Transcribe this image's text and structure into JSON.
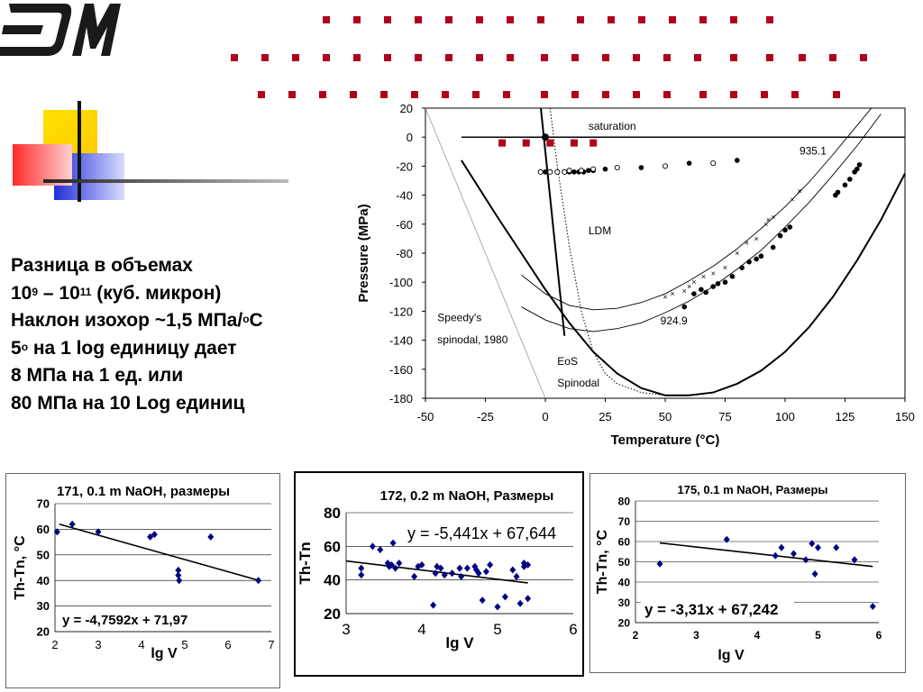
{
  "colors": {
    "accent_red": "#b0001e",
    "deco_yellow": "#ffd700",
    "deco_blue": "#1f2ed6",
    "deco_red": "#ff2a2a",
    "series_blue": "#000080"
  },
  "notes": {
    "line1": "Разница в объемах",
    "line2_base1": "10",
    "line2_sup1": "9",
    "line2_mid": " – 10",
    "line2_sup2": "11",
    "line2_tail": " (куб. микрон)",
    "line3_pre": "Наклон изохор ~1,5 МПа/",
    "line3_sup": "o",
    "line3_post": "С",
    "line4_pre": "5",
    "line4_sup": "o",
    "line4_post": " на 1 log единицу дает",
    "line5": "8 МПа на 1 ед. или",
    "line6": "80 МПа на 10 Log единиц"
  },
  "chart_data": [
    {
      "type": "line",
      "xlabel": "Temperature (°C)",
      "ylabel": "Pressure (MPa)",
      "xlim": [
        -50,
        150
      ],
      "ylim": [
        -180,
        20
      ],
      "xticks": [
        -50,
        -25,
        0,
        25,
        50,
        75,
        100,
        125,
        150
      ],
      "yticks": [
        20,
        0,
        -20,
        -40,
        -60,
        -80,
        -100,
        -120,
        -140,
        -160,
        -180
      ],
      "annotations": {
        "saturation": "saturation",
        "iso_upper": "935.1",
        "iso_lower": "924.9",
        "ldm": "LDM",
        "speedy1": "Speedy's",
        "speedy2": "spinodal, 1980",
        "eos1": "EoS",
        "eos2": "Spinodal"
      },
      "series": [
        {
          "style": "saturation-line",
          "x": [
            -35,
            150
          ],
          "y": [
            0,
            0
          ]
        },
        {
          "style": "eos-spinodal",
          "x": [
            -35,
            -20,
            -10,
            0,
            10,
            20,
            30,
            40,
            50,
            60,
            70,
            80,
            90,
            100,
            110,
            120,
            130,
            140,
            150
          ],
          "y": [
            -16,
            -55,
            -80,
            -105,
            -128,
            -148,
            -163,
            -173,
            -178,
            -178,
            -176,
            -170,
            -161,
            -148,
            -131,
            -110,
            -85,
            -57,
            -25
          ]
        },
        {
          "style": "speedy-spinodal",
          "x": [
            -50,
            0
          ],
          "y": [
            20,
            -180
          ]
        },
        {
          "style": "ldm-dotted",
          "x": [
            2,
            5,
            10,
            15,
            20,
            25,
            30,
            40,
            50,
            60
          ],
          "y": [
            20,
            -20,
            -75,
            -120,
            -148,
            -163,
            -170,
            -176,
            -178,
            -178
          ]
        },
        {
          "style": "steep-line",
          "x": [
            -2,
            8
          ],
          "y": [
            22,
            -137
          ]
        },
        {
          "style": "isochore-upper",
          "x": [
            -10,
            0,
            10,
            20,
            30,
            40,
            50,
            60,
            70,
            80,
            90,
            100,
            110,
            120,
            130,
            140,
            146
          ],
          "y": [
            -95,
            -108,
            -116,
            -119,
            -118,
            -114,
            -108,
            -99,
            -89,
            -77,
            -63,
            -48,
            -31,
            -12,
            8,
            28,
            40
          ]
        },
        {
          "style": "isochore-lower",
          "x": [
            -10,
            0,
            10,
            20,
            30,
            40,
            50,
            60,
            70,
            80,
            90,
            100,
            110,
            120,
            130,
            140
          ],
          "y": [
            -117,
            -126,
            -132,
            -134,
            -132,
            -128,
            -121,
            -113,
            -103,
            -91,
            -78,
            -62,
            -45,
            -26,
            -6,
            16
          ]
        },
        {
          "style": "filled-points",
          "x": [
            0,
            5,
            8,
            10,
            12,
            14,
            16,
            18,
            20,
            25,
            40,
            60,
            80,
            58,
            62,
            65,
            67,
            70,
            72,
            75,
            78,
            82,
            85,
            88,
            90,
            95,
            98,
            100,
            102,
            121,
            122,
            125,
            127,
            129,
            130,
            131
          ],
          "y": [
            -24,
            -24,
            -24,
            -24,
            -24,
            -24,
            -24,
            -23,
            -23,
            -22,
            -21,
            -18,
            -16,
            -117,
            -108,
            -105,
            -107,
            -103,
            -101,
            -100,
            -96,
            -90,
            -86,
            -84,
            -82,
            -76,
            -68,
            -64,
            -62,
            -40,
            -38,
            -33,
            -29,
            -24,
            -22,
            -19
          ]
        },
        {
          "style": "open-points",
          "x": [
            -2,
            2,
            5,
            8,
            10,
            15,
            20,
            30,
            50,
            70
          ],
          "y": [
            -24,
            -24,
            -24,
            -24,
            -23,
            -23,
            -22,
            -21,
            -20,
            -18
          ]
        },
        {
          "style": "x-points",
          "x": [
            50,
            53,
            58,
            60,
            62,
            66,
            70,
            75,
            80,
            84,
            88,
            92,
            93,
            95,
            103,
            106
          ],
          "y": [
            -110,
            -108,
            -106,
            -103,
            -100,
            -96,
            -94,
            -90,
            -80,
            -73,
            -70,
            -60,
            -57,
            -55,
            -43,
            -37
          ]
        }
      ]
    },
    {
      "type": "scatter",
      "title": "171, 0.1 m NaOH, размеры",
      "xlabel": "lg V",
      "ylabel": "Th-Tn, °C",
      "xlim": [
        2,
        7
      ],
      "ylim": [
        20,
        70
      ],
      "xticks": [
        2,
        3,
        4,
        5,
        6,
        7
      ],
      "yticks": [
        20,
        30,
        40,
        50,
        60,
        70
      ],
      "equation": "y = -4,7592x + 71,97",
      "x": [
        2.05,
        2.4,
        3.0,
        4.2,
        4.3,
        4.85,
        4.85,
        4.87,
        5.6,
        6.7
      ],
      "y": [
        59,
        62,
        59,
        57,
        58,
        44,
        42,
        40,
        57,
        40
      ],
      "trend": {
        "slope": -4.7592,
        "intercept": 71.97,
        "x": [
          2.1,
          6.7
        ]
      }
    },
    {
      "type": "scatter",
      "title": "172, 0.2 m NaOH, Размеры",
      "xlabel": "lg V",
      "ylabel": "Th-Tn",
      "xlim": [
        3,
        6
      ],
      "ylim": [
        20,
        80
      ],
      "xticks": [
        3,
        4,
        5,
        6
      ],
      "yticks": [
        20,
        40,
        60,
        80
      ],
      "equation": "y = -5,441x + 67,644",
      "x": [
        3.2,
        3.2,
        3.35,
        3.45,
        3.55,
        3.57,
        3.6,
        3.62,
        3.65,
        3.7,
        3.9,
        3.95,
        4.0,
        4.15,
        4.18,
        4.2,
        4.25,
        4.3,
        4.4,
        4.5,
        4.52,
        4.6,
        4.7,
        4.72,
        4.75,
        4.8,
        4.85,
        4.9,
        5.0,
        5.1,
        5.2,
        5.25,
        5.3,
        5.35,
        5.35,
        5.4,
        5.4
      ],
      "y": [
        47,
        43,
        60,
        58,
        50,
        48,
        49,
        62,
        47,
        50,
        42,
        48,
        49,
        25,
        44,
        48,
        47,
        43,
        44,
        47,
        42,
        47,
        48,
        46,
        44,
        28,
        45,
        49,
        24,
        30,
        46,
        42,
        26,
        50,
        48,
        49,
        29
      ],
      "trend": {
        "slope": -5.441,
        "intercept": 67.644,
        "x": [
          3.0,
          5.4
        ]
      }
    },
    {
      "type": "scatter",
      "title": "175, 0.1 m NaOH, Размеры",
      "xlabel": "lg V",
      "ylabel": "Th-Tn, °C",
      "xlim": [
        2,
        6
      ],
      "ylim": [
        20,
        80
      ],
      "xticks": [
        2,
        3,
        4,
        5,
        6
      ],
      "yticks": [
        20,
        30,
        40,
        50,
        60,
        70,
        80
      ],
      "equation": "y = -3,31x + 67,242",
      "x": [
        2.4,
        3.5,
        4.3,
        4.4,
        4.6,
        4.8,
        4.9,
        4.95,
        5.0,
        5.3,
        5.6,
        5.9
      ],
      "y": [
        49,
        61,
        53,
        57,
        54,
        51,
        59,
        44,
        57,
        57,
        51,
        28
      ],
      "trend": {
        "slope": -3.31,
        "intercept": 67.242,
        "x": [
          2.4,
          5.9
        ]
      }
    }
  ]
}
